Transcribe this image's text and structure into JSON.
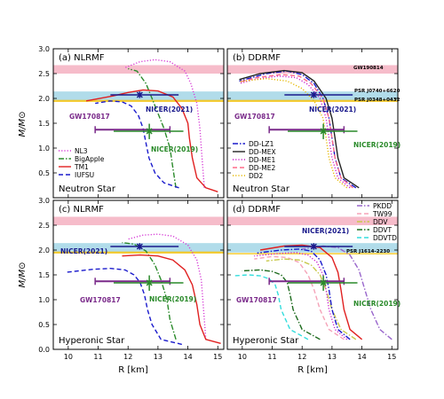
{
  "chart_data": [
    {
      "type": "line",
      "panel": "(a) NLRMF",
      "star_type": "Neutron Star",
      "xlabel": "R [km]",
      "ylabel": "M/M⊙",
      "xlim": [
        9.5,
        15.2
      ],
      "ylim": [
        0.0,
        3.0
      ],
      "legend_position": "bottom-left",
      "series": [
        {
          "name": "NL3",
          "color": "#d63cd6",
          "style": "dotted",
          "x": [
            14.55,
            14.5,
            14.45,
            14.4,
            14.3,
            14.1,
            13.9,
            13.4,
            12.9,
            12.4,
            11.9
          ],
          "y": [
            0.2,
            0.6,
            1.0,
            1.4,
            1.9,
            2.3,
            2.55,
            2.74,
            2.78,
            2.74,
            2.62
          ]
        },
        {
          "name": "BigApple",
          "color": "#2a8a2a",
          "style": "dashdot",
          "x": [
            13.6,
            13.5,
            13.4,
            13.2,
            13.0,
            12.8,
            12.6,
            12.3,
            12.0
          ],
          "y": [
            0.2,
            0.6,
            1.0,
            1.4,
            1.7,
            2.0,
            2.3,
            2.55,
            2.6
          ]
        },
        {
          "name": "TM1",
          "color": "#e02020",
          "style": "solid",
          "x": [
            15.0,
            14.6,
            14.3,
            14.15,
            14.05,
            14.0,
            13.8,
            13.5,
            13.0,
            12.5,
            12.0,
            11.5,
            10.6
          ],
          "y": [
            0.12,
            0.2,
            0.4,
            0.8,
            1.2,
            1.5,
            1.8,
            2.03,
            2.15,
            2.17,
            2.12,
            2.05,
            1.95
          ]
        },
        {
          "name": "IUFSU",
          "color": "#1a1acc",
          "style": "dashed",
          "x": [
            13.7,
            13.2,
            12.9,
            12.7,
            12.6,
            12.5,
            12.35,
            12.1,
            11.8,
            11.4,
            10.9
          ],
          "y": [
            0.2,
            0.3,
            0.5,
            0.8,
            1.1,
            1.4,
            1.65,
            1.85,
            1.93,
            1.95,
            1.9
          ]
        }
      ]
    },
    {
      "type": "line",
      "panel": "(b) DDRMF",
      "star_type": "Neutron Star",
      "xlabel": "R [km]",
      "xlim": [
        9.5,
        15.2
      ],
      "ylim": [
        0.0,
        3.0
      ],
      "legend_position": "bottom-left",
      "series": [
        {
          "name": "DD-LZ1",
          "color": "#1a1acc",
          "style": "dashdot",
          "x": [
            13.8,
            13.3,
            13.1,
            13.0,
            12.9,
            12.7,
            12.4,
            12.0,
            11.5,
            10.8,
            9.9
          ],
          "y": [
            0.2,
            0.4,
            0.8,
            1.2,
            1.6,
            2.0,
            2.3,
            2.48,
            2.55,
            2.5,
            2.35
          ]
        },
        {
          "name": "DD-MEX",
          "color": "#222222",
          "style": "solid",
          "x": [
            13.9,
            13.4,
            13.2,
            13.1,
            13.0,
            12.8,
            12.4,
            12.0,
            11.4,
            10.6,
            9.9
          ],
          "y": [
            0.2,
            0.4,
            0.8,
            1.2,
            1.6,
            2.0,
            2.35,
            2.52,
            2.56,
            2.5,
            2.38
          ]
        },
        {
          "name": "DD-ME1",
          "color": "#cc22cc",
          "style": "dotted",
          "x": [
            13.6,
            13.2,
            13.0,
            12.9,
            12.8,
            12.6,
            12.2,
            11.8,
            11.2,
            10.4,
            9.9
          ],
          "y": [
            0.2,
            0.4,
            0.8,
            1.2,
            1.6,
            2.0,
            2.28,
            2.42,
            2.45,
            2.38,
            2.3
          ]
        },
        {
          "name": "DD-ME2",
          "color": "#ff6b8a",
          "style": "dashed",
          "x": [
            13.7,
            13.3,
            13.1,
            13.0,
            12.9,
            12.7,
            12.3,
            11.9,
            11.3,
            10.5,
            9.9
          ],
          "y": [
            0.2,
            0.4,
            0.8,
            1.2,
            1.6,
            2.0,
            2.3,
            2.45,
            2.48,
            2.42,
            2.33
          ]
        },
        {
          "name": "DD2",
          "color": "#e6b800",
          "style": "dotted",
          "x": [
            13.5,
            13.1,
            12.9,
            12.8,
            12.7,
            12.4,
            12.0,
            11.5,
            10.8,
            9.9
          ],
          "y": [
            0.2,
            0.4,
            0.8,
            1.2,
            1.6,
            1.95,
            2.2,
            2.35,
            2.4,
            2.34
          ]
        }
      ]
    },
    {
      "type": "line",
      "panel": "(c) NLRMF",
      "star_type": "Hyperonic Star",
      "xlabel": "R [km]",
      "ylabel": "M/M⊙",
      "xlim": [
        9.5,
        15.2
      ],
      "ylim": [
        0.0,
        3.0
      ],
      "series": [
        {
          "name": "NL3",
          "color": "#d63cd6",
          "style": "dotted",
          "x": [
            14.6,
            14.55,
            14.5,
            14.45,
            14.3,
            14.0,
            13.5,
            13.0,
            12.5,
            12.0
          ],
          "y": [
            0.2,
            0.6,
            1.0,
            1.4,
            1.8,
            2.1,
            2.28,
            2.32,
            2.3,
            2.22
          ]
        },
        {
          "name": "BigApple",
          "color": "#2a8a2a",
          "style": "dashdot",
          "x": [
            13.6,
            13.4,
            13.3,
            13.1,
            12.9,
            12.6,
            12.2,
            11.8
          ],
          "y": [
            0.2,
            0.6,
            1.0,
            1.4,
            1.7,
            1.98,
            2.12,
            2.15
          ]
        },
        {
          "name": "TM1",
          "color": "#e02020",
          "style": "solid",
          "x": [
            15.1,
            14.6,
            14.4,
            14.3,
            14.15,
            13.9,
            13.5,
            13.0,
            12.4,
            11.8
          ],
          "y": [
            0.12,
            0.2,
            0.5,
            0.9,
            1.3,
            1.6,
            1.8,
            1.88,
            1.9,
            1.88
          ]
        },
        {
          "name": "IUFSU",
          "color": "#1a1acc",
          "style": "dashed",
          "x": [
            13.8,
            13.1,
            12.8,
            12.65,
            12.55,
            12.4,
            12.2,
            11.9,
            11.4,
            10.8,
            9.9
          ],
          "y": [
            0.1,
            0.2,
            0.5,
            0.8,
            1.1,
            1.35,
            1.5,
            1.6,
            1.63,
            1.61,
            1.55
          ]
        }
      ]
    },
    {
      "type": "line",
      "panel": "(d) DDRMF",
      "star_type": "Hyperonic Star",
      "xlabel": "R [km]",
      "xlim": [
        9.5,
        15.2
      ],
      "ylim": [
        0.0,
        3.0
      ],
      "legend_position": "top-right",
      "series": [
        {
          "name": "PKDD",
          "color": "#9966cc",
          "style": "dashdot",
          "x": [
            15.0,
            14.6,
            14.3,
            14.1,
            13.9,
            13.6,
            13.2,
            12.7,
            12.0
          ],
          "y": [
            0.2,
            0.4,
            0.8,
            1.2,
            1.6,
            1.9,
            2.05,
            2.08,
            2.02
          ]
        },
        {
          "name": "TW99",
          "color": "#f5a3b8",
          "style": "dashed",
          "x": [
            13.4,
            12.9,
            12.6,
            12.4,
            12.2,
            11.9,
            11.5,
            11.0,
            10.4
          ],
          "y": [
            0.2,
            0.4,
            0.8,
            1.2,
            1.5,
            1.75,
            1.85,
            1.87,
            1.82
          ]
        },
        {
          "name": "DDV",
          "color": "#c8c84a",
          "style": "dashdot",
          "x": [
            13.8,
            13.3,
            13.0,
            12.8,
            12.6,
            12.3,
            11.9,
            11.4,
            10.8
          ],
          "y": [
            0.2,
            0.4,
            0.8,
            1.2,
            1.5,
            1.7,
            1.8,
            1.82,
            1.78
          ]
        },
        {
          "name": "DDVT",
          "color": "#1e6b1e",
          "style": "dashdot",
          "x": [
            12.6,
            12.0,
            11.7,
            11.6,
            11.5,
            11.3,
            11.0,
            10.6,
            10.0
          ],
          "y": [
            0.2,
            0.4,
            0.8,
            1.1,
            1.35,
            1.5,
            1.57,
            1.6,
            1.58
          ]
        },
        {
          "name": "DDVTD",
          "color": "#33dddd",
          "style": "dashed",
          "x": [
            12.2,
            11.6,
            11.3,
            11.2,
            11.1,
            10.9,
            10.6,
            10.2,
            9.7
          ],
          "y": [
            0.2,
            0.4,
            0.8,
            1.1,
            1.3,
            1.42,
            1.48,
            1.5,
            1.48
          ]
        },
        {
          "name": "",
          "color": "#e02020",
          "style": "solid",
          "x": [
            14.0,
            13.6,
            13.4,
            13.3,
            13.2,
            13.0,
            12.6,
            12.0,
            11.4,
            10.6
          ],
          "y": [
            0.2,
            0.4,
            0.8,
            1.2,
            1.55,
            1.85,
            2.05,
            2.1,
            2.08,
            2.0
          ]
        },
        {
          "name": "",
          "color": "#1a1acc",
          "style": "dashdot",
          "x": [
            13.6,
            13.2,
            13.0,
            12.9,
            12.8,
            12.6,
            12.3,
            11.9,
            11.3,
            10.5
          ],
          "y": [
            0.2,
            0.4,
            0.8,
            1.2,
            1.5,
            1.8,
            1.98,
            2.02,
            2.0,
            1.94
          ]
        },
        {
          "name": "",
          "color": "#cc22cc",
          "style": "dotted",
          "x": [
            13.5,
            13.1,
            12.9,
            12.8,
            12.7,
            12.5,
            12.2,
            11.8,
            11.2,
            10.4
          ],
          "y": [
            0.2,
            0.4,
            0.8,
            1.2,
            1.5,
            1.75,
            1.9,
            1.95,
            1.93,
            1.88
          ]
        }
      ]
    }
  ],
  "constraints": {
    "nicer_2021": {
      "label": "NICER(2021)",
      "r": 12.39,
      "r_err": [
        0.98,
        1.3
      ],
      "m": 2.072,
      "m_err": [
        0.066,
        0.067
      ],
      "color": "#1a1a8c"
    },
    "nicer_2019": {
      "label": "NICER(2019)",
      "r": 12.71,
      "r_err": [
        1.19,
        1.14
      ],
      "m": 1.34,
      "m_err": [
        0.16,
        0.15
      ],
      "color": "#2a8a2a"
    },
    "gw170817": {
      "label": "GW170817",
      "r_min": 10.9,
      "r_max": 13.4,
      "m": 1.37,
      "color": "#7a2a8a"
    },
    "gw190814": {
      "label": "GW190814",
      "m_range": [
        2.5,
        2.67
      ],
      "color": "#f5b5c4"
    },
    "psr_j0740": {
      "label": "PSR J0740+6620",
      "m_range": [
        1.95,
        2.14
      ],
      "color": "#a8d8e8"
    },
    "psr_j0348": {
      "label": "PSR J0348+0432",
      "m_range": [
        1.93,
        1.97
      ],
      "color": "#f5c518"
    },
    "psr_j1614": {
      "label": "PSR J1614-2230",
      "m_range": [
        1.92,
        1.94
      ],
      "color": "#f5c518"
    }
  }
}
